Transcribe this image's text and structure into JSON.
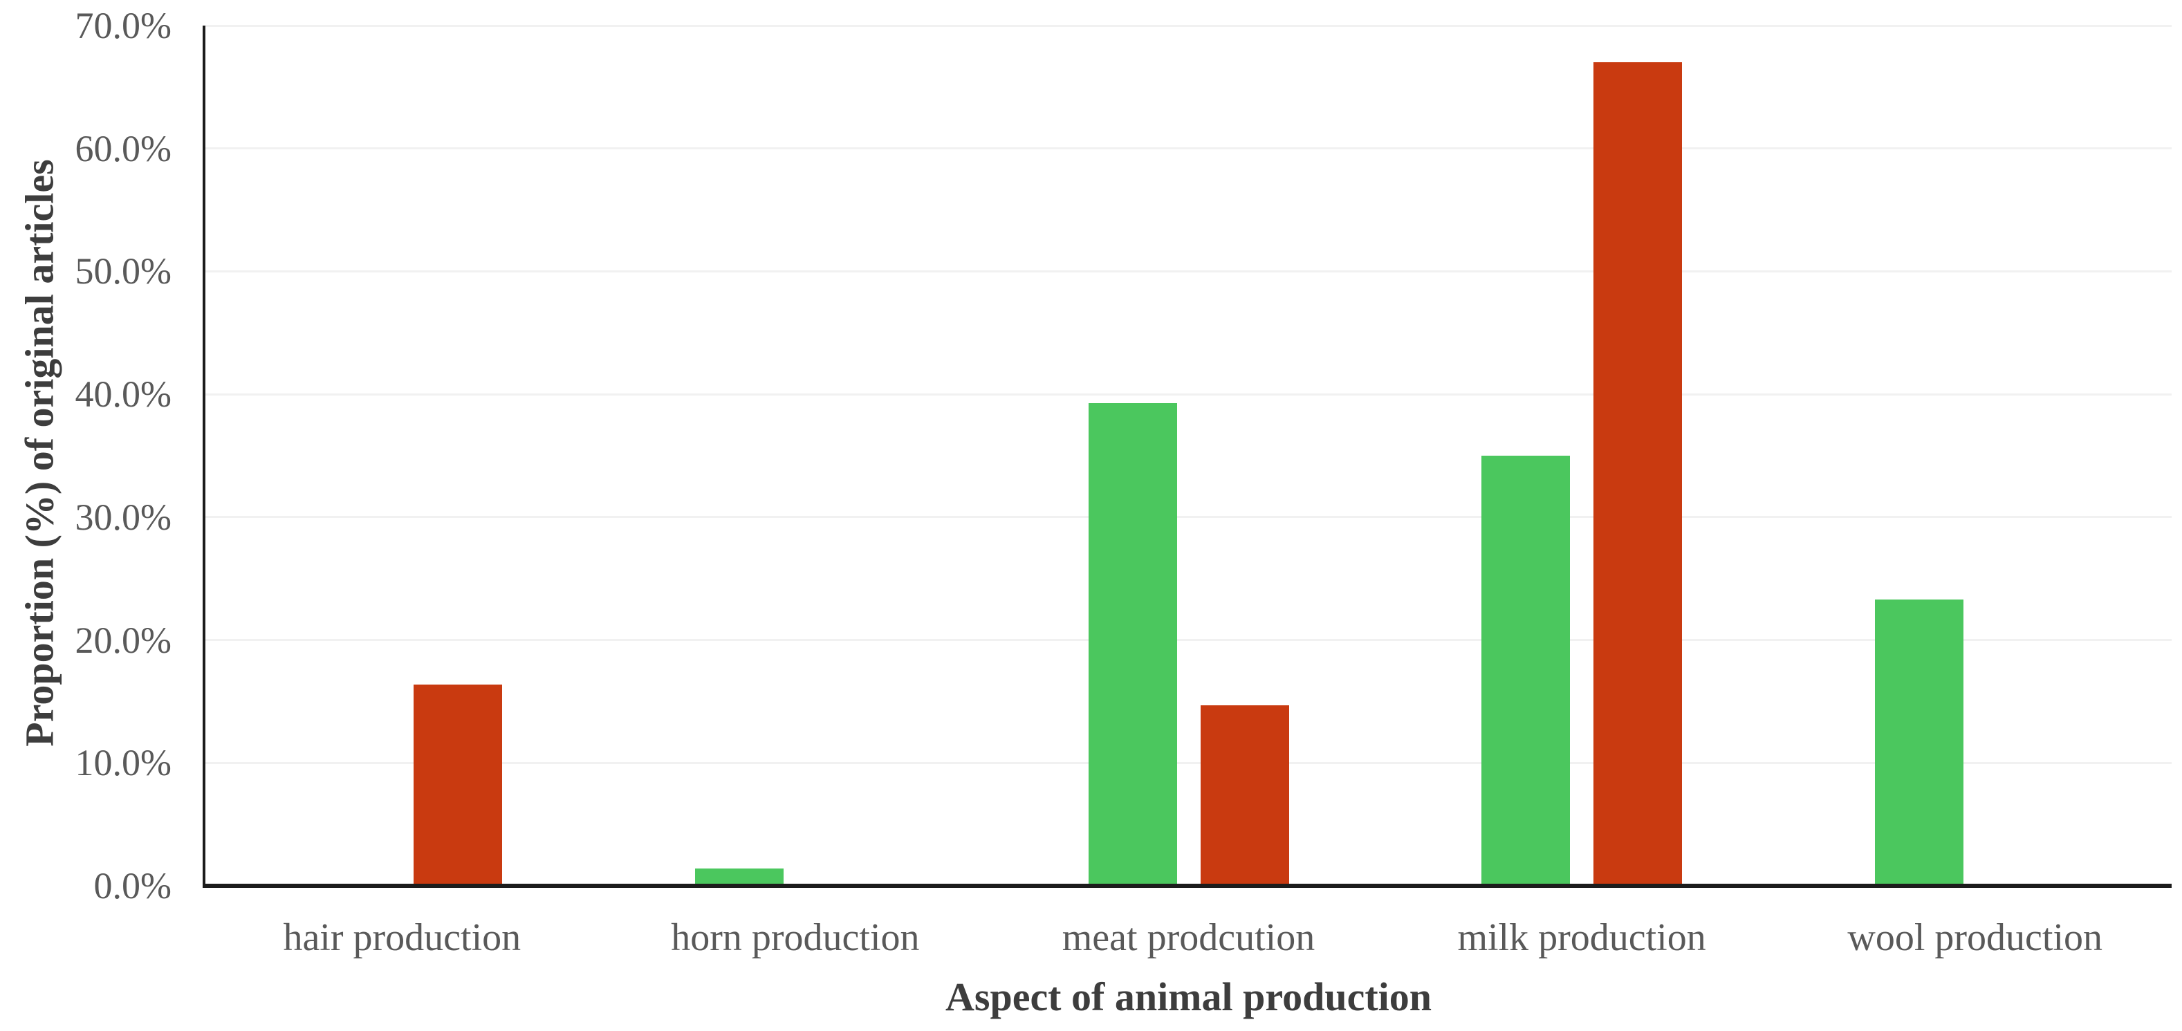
{
  "chart_data": {
    "type": "bar",
    "title": "",
    "categories": [
      "hair production",
      "horn production",
      "meat prodcution",
      "milk production",
      "wool production"
    ],
    "series": [
      {
        "name": "green",
        "color": "#4bc75e",
        "values": [
          0,
          1.4,
          39.3,
          35.0,
          23.3
        ]
      },
      {
        "name": "red",
        "color": "#c93a10",
        "values": [
          16.4,
          0,
          14.7,
          67.0,
          0
        ]
      }
    ],
    "xlabel": "Aspect of animal production",
    "ylabel": "Proportion (%) of original articles",
    "ylim": [
      0,
      70
    ],
    "y_tick_labels": [
      "0.0%",
      "10.0%",
      "20.0%",
      "30.0%",
      "40.0%",
      "50.0%",
      "60.0%",
      "70.0%"
    ],
    "grid": true,
    "legend_position": "none"
  },
  "colors": {
    "gridline": "#f1f1f1",
    "axis_line": "#1c1c1c",
    "tick_text": "#595959",
    "title_text": "#3d3d3d",
    "background": "#ffffff"
  }
}
